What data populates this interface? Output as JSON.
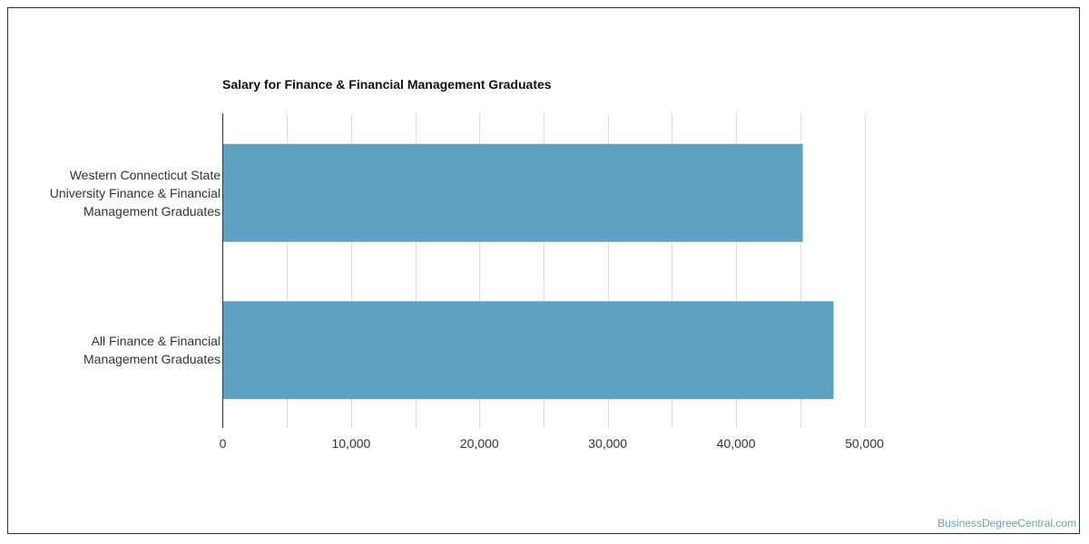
{
  "chart_data": {
    "type": "bar",
    "orientation": "horizontal",
    "title": "Salary for Finance & Financial Management Graduates",
    "categories": [
      "Western Connecticut State University Finance & Financial Management Graduates",
      "All Finance & Financial Management Graduates"
    ],
    "category_lines": [
      [
        "Western Connecticut State",
        "University Finance & Financial",
        "Management Graduates"
      ],
      [
        "All Finance & Financial",
        "Management Graduates"
      ]
    ],
    "values": [
      45200,
      47600
    ],
    "xlim": [
      0,
      50000
    ],
    "x_ticks": [
      0,
      10000,
      20000,
      30000,
      40000,
      50000
    ],
    "x_tick_labels": [
      "0",
      "10,000",
      "20,000",
      "30,000",
      "40,000",
      "50,000"
    ],
    "grid": true,
    "bar_color": "#5fa2bf"
  },
  "watermark": "BusinessDegreeCentral.com"
}
